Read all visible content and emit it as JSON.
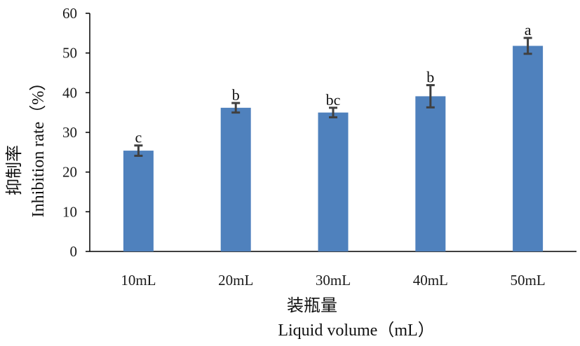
{
  "chart_data": {
    "type": "bar",
    "categories": [
      "10mL",
      "20mL",
      "30mL",
      "40mL",
      "50mL"
    ],
    "series": [
      {
        "values": [
          25.4,
          36.2,
          35.0,
          39.1,
          51.8
        ],
        "errors": [
          1.3,
          1.2,
          1.2,
          2.8,
          2.0
        ],
        "significance": [
          "c",
          "b",
          "bc",
          "b",
          "a"
        ],
        "color": "#4f81bd"
      }
    ],
    "ylim": [
      0,
      60
    ],
    "yticks": [
      0,
      10,
      20,
      30,
      40,
      50,
      60
    ],
    "ylabel_cn": "抑制率",
    "ylabel": "Inhibition rate（%）",
    "xlabel_cn": "装瓶量",
    "xlabel": "Liquid volume（mL）",
    "grid": false,
    "legend": "none",
    "error_bar_color": "#404040",
    "axis_color": "#000000"
  }
}
